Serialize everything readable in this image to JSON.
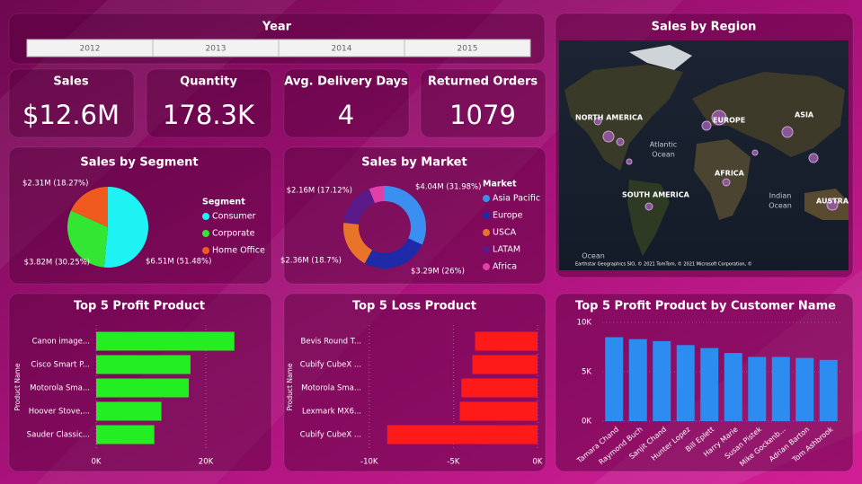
{
  "year_slicer": {
    "title": "Year",
    "items": [
      "2012",
      "2013",
      "2014",
      "2015"
    ]
  },
  "cards": [
    {
      "label": "Sales",
      "value": "$12.6M"
    },
    {
      "label": "Quantity",
      "value": "178.3K"
    },
    {
      "label": "Avg. Delivery Days",
      "value": "4"
    },
    {
      "label": "Returned Orders",
      "value": "1079"
    }
  ],
  "map": {
    "title": "Sales by Region",
    "labels": [
      "NORTH AMERICA",
      "EUROPE",
      "ASIA",
      "Atlantic",
      "Ocean",
      "AFRICA",
      "SOUTH AMERICA",
      "Indian",
      "Ocean",
      "AUSTRA",
      "Ocean"
    ],
    "attribution": "Earthstar Geographics SIO, © 2021 TomTom, © 2021 Microsoft Corporation, ©"
  },
  "chart_data": [
    {
      "type": "pie",
      "title": "Sales by Segment",
      "legend_title": "Segment",
      "categories": [
        "Consumer",
        "Corporate",
        "Home Office"
      ],
      "values": [
        6510000,
        3820000,
        2310000
      ],
      "value_labels": [
        "$6.51M (51.48%)",
        "$3.82M (30.25%)",
        "$2.31M (18.27%)"
      ],
      "colors": [
        "#1ff2f2",
        "#33e633",
        "#f05a1e"
      ]
    },
    {
      "type": "donut",
      "title": "Sales by Market",
      "legend_title": "Market",
      "categories": [
        "Asia Pacific",
        "Europe",
        "USCA",
        "LATAM",
        "Africa"
      ],
      "values": [
        4040000,
        3290000,
        2360000,
        2160000,
        780000
      ],
      "value_labels": [
        "$4.04M (31.98%)",
        "$3.29M (26%)",
        "$2.36M (18.7%)",
        "$2.16M (17.12%)",
        null
      ],
      "colors": [
        "#3a8ff0",
        "#1e2aa8",
        "#e8742a",
        "#5a1a8a",
        "#e040a8"
      ]
    },
    {
      "type": "bar",
      "orientation": "horizontal",
      "title": "Top 5 Profit Product",
      "y_label": "Product Name",
      "categories": [
        "Canon image...",
        "Cisco Smart P...",
        "Motorola Sma...",
        "Hoover Stove,...",
        "Sauder Classic..."
      ],
      "values": [
        25200,
        17200,
        16900,
        11900,
        10600
      ],
      "color": "#22ee22",
      "xlim": [
        0,
        30000
      ],
      "xticks": [
        {
          "value": 0,
          "label": "0K"
        },
        {
          "value": 20000,
          "label": "20K"
        }
      ],
      "grid": true
    },
    {
      "type": "bar",
      "orientation": "horizontal",
      "title": "Top 5 Loss Product",
      "y_label": "Product Name",
      "categories": [
        "Bevis Round T...",
        "Cubify CubeX ...",
        "Motorola Sma...",
        "Lexmark MX6...",
        "Cubify CubeX ..."
      ],
      "values": [
        -3710,
        -3870,
        -4520,
        -4620,
        -8930
      ],
      "color": "#ff1a1a",
      "xlim": [
        -10200,
        0
      ],
      "xticks": [
        {
          "value": -10000,
          "label": "-10K"
        },
        {
          "value": -5000,
          "label": "-5K"
        },
        {
          "value": 0,
          "label": "0K"
        }
      ],
      "grid": true
    },
    {
      "type": "bar",
      "orientation": "vertical",
      "title": "Top 5 Profit Product by Customer Name",
      "categories": [
        "Tamara Chand",
        "Raymond Buch",
        "Sanjit Chand",
        "Hunter Lopez",
        "Bill Eplett",
        "Harry Marie",
        "Susan Pistek",
        "Mike Gockenb...",
        "Adrian Barton",
        "Tom Ashbrook"
      ],
      "values": [
        8500,
        8300,
        8100,
        7700,
        7400,
        6900,
        6500,
        6500,
        6400,
        6200
      ],
      "color": "#2d8cf0",
      "ylim": [
        0,
        10000
      ],
      "yticks": [
        {
          "value": 0,
          "label": "0K"
        },
        {
          "value": 5000,
          "label": "5K"
        },
        {
          "value": 10000,
          "label": "10K"
        }
      ],
      "grid": true
    }
  ]
}
